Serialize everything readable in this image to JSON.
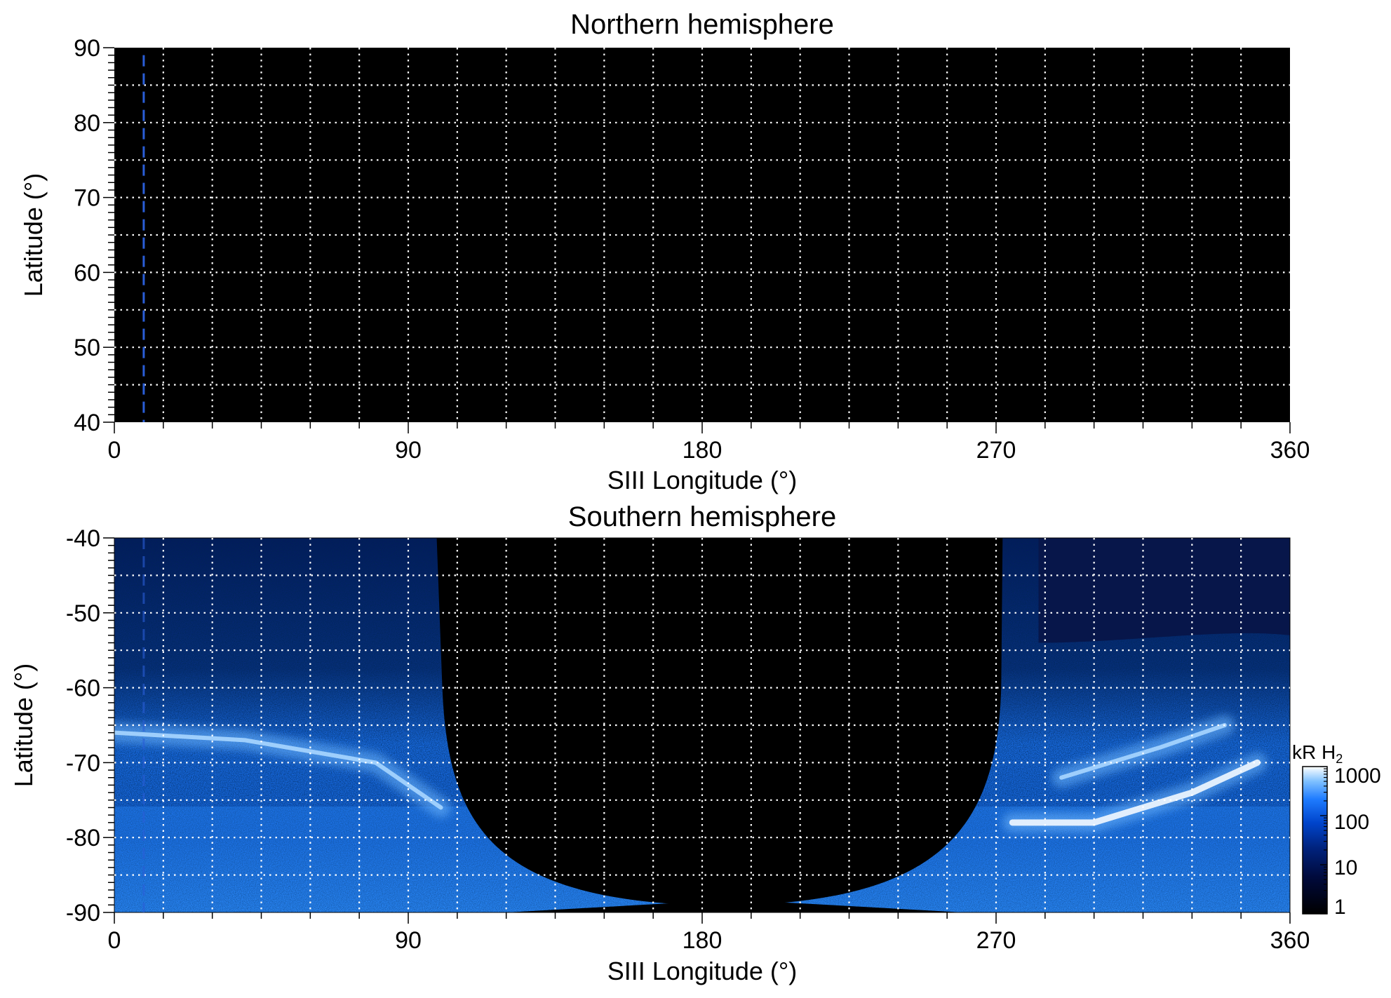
{
  "chart_data": [
    {
      "type": "heatmap",
      "title": "Northern hemisphere",
      "xlabel": "SIII Longitude (°)",
      "ylabel": "Latitude (°)",
      "xlim": [
        0,
        360
      ],
      "ylim": [
        40,
        90
      ],
      "xticks": [
        "0",
        "90",
        "180",
        "270",
        "360"
      ],
      "yticks": [
        "90",
        "80",
        "70",
        "60",
        "50",
        "40"
      ],
      "grid": true,
      "grid_step_deg": {
        "x": 15,
        "y": 5
      },
      "marker_longitude": 9,
      "marker_color": "#2a5ed8",
      "background": "#000000",
      "note_visible_emission": "none"
    },
    {
      "type": "heatmap",
      "title": "Southern hemisphere",
      "xlabel": "SIII Longitude (°)",
      "ylabel": "Latitude (°)",
      "xlim": [
        0,
        360
      ],
      "ylim": [
        -90,
        -40
      ],
      "xticks": [
        "0",
        "90",
        "180",
        "270",
        "360"
      ],
      "yticks": [
        "-40",
        "-50",
        "-60",
        "-70",
        "-80",
        "-90"
      ],
      "grid": true,
      "grid_step_deg": {
        "x": 15,
        "y": 5
      },
      "marker_longitude": 9,
      "marker_color": "#2a5ed8",
      "no_data_region": {
        "lon_min": 100,
        "lon_max": 272,
        "lat_top": -40,
        "lat_bottom": -89
      },
      "features": [
        {
          "name": "left oval arc",
          "points": [
            [
              0,
              -66
            ],
            [
              40,
              -67
            ],
            [
              80,
              -70
            ],
            [
              100,
              -76
            ]
          ]
        },
        {
          "name": "right main oval",
          "points": [
            [
              275,
              -78
            ],
            [
              300,
              -78
            ],
            [
              330,
              -74
            ],
            [
              350,
              -70
            ]
          ]
        },
        {
          "name": "right upper arc",
          "points": [
            [
              290,
              -72
            ],
            [
              320,
              -68
            ],
            [
              340,
              -65
            ]
          ]
        }
      ]
    }
  ],
  "colorbar": {
    "label_main": "kR H",
    "label_sub": "2",
    "ticks": [
      "1000",
      "100",
      "10",
      "1"
    ],
    "scale": "log",
    "range": [
      1,
      1000
    ],
    "colors": [
      "#000000",
      "#000a3c",
      "#00237e",
      "#0045cc",
      "#1f7cff",
      "#7fc0ff",
      "#ffffff"
    ]
  }
}
